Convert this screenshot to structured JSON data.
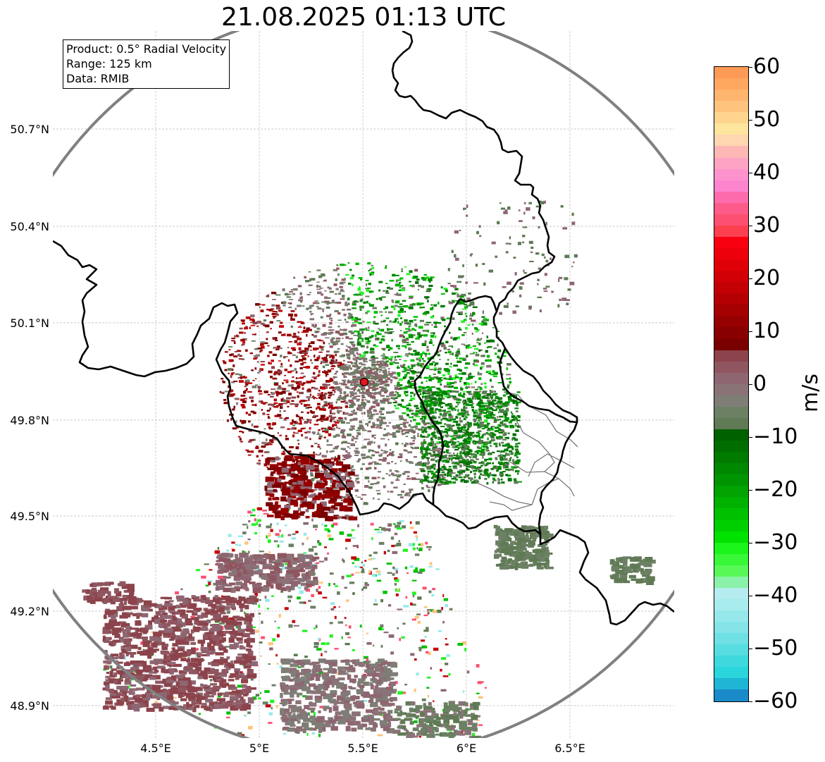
{
  "title": "21.08.2025 01:13 UTC",
  "info": {
    "product": "Product: 0.5° Radial Velocity",
    "range": "Range: 125 km",
    "source": "Data: RMIB"
  },
  "axes": {
    "lat_labels": [
      "50.7°N",
      "50.4°N",
      "50.1°N",
      "49.8°N",
      "49.5°N",
      "49.2°N",
      "48.9°N"
    ],
    "lon_labels": [
      "4.5°E",
      "5°E",
      "5.5°E",
      "6°E",
      "6.5°E"
    ],
    "lat_range": [
      48.8,
      50.99
    ],
    "lon_range": [
      4.0,
      7.0
    ]
  },
  "radar": {
    "lat": 49.91,
    "lon": 5.5,
    "range_km": 125,
    "marker_color": "#e8141c"
  },
  "colorbar": {
    "label": "m/s",
    "min": -60,
    "max": 60,
    "ticks": [
      "60",
      "50",
      "40",
      "30",
      "20",
      "10",
      "0",
      "−10",
      "−20",
      "−30",
      "−40",
      "−50",
      "−60"
    ],
    "colors_top_to_bottom": [
      "#fd9a55",
      "#fea75e",
      "#feb56e",
      "#fec47e",
      "#fed48e",
      "#fee59e",
      "#fed6b0",
      "#fdb7b5",
      "#fda3c3",
      "#fe92cf",
      "#fd84cf",
      "#fe6cae",
      "#fd5c8a",
      "#fd4f70",
      "#fd4050",
      "#f90010",
      "#ed000c",
      "#e00008",
      "#d20006",
      "#c30004",
      "#b40003",
      "#a50002",
      "#960001",
      "#880000",
      "#7a0000",
      "#8c434b",
      "#8f5660",
      "#8e6672",
      "#8a7377",
      "#7e7e76",
      "#6c8064",
      "#5f7a55",
      "#006100",
      "#006e00",
      "#007b00",
      "#008800",
      "#009500",
      "#00a300",
      "#00b100",
      "#00c000",
      "#00d000",
      "#00e200",
      "#1cf51c",
      "#38f838",
      "#58f858",
      "#8af2a8",
      "#b4ecef",
      "#a8ecee",
      "#96e8ea",
      "#84e4e8",
      "#6fe0e4",
      "#57dde1",
      "#3ed9dd",
      "#2ad6dc",
      "#1fb6d6",
      "#1a8ac8"
    ]
  }
}
